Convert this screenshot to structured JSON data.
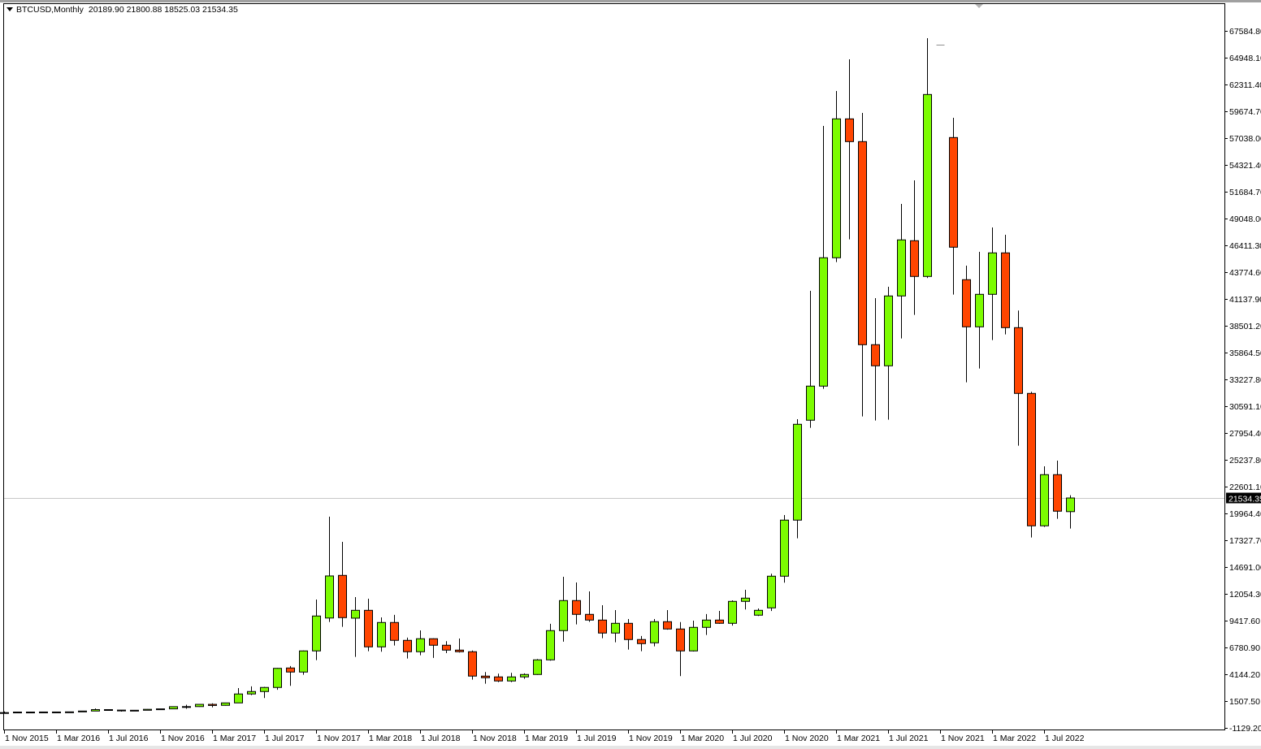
{
  "header": {
    "symbol_timeframe": "BTCUSD,Monthly",
    "ohlc": "20189.90 21800.88 18525.03 21534.35"
  },
  "colors": {
    "bull": "#7CFC00",
    "bear": "#FF4500",
    "outline": "#000000",
    "current_price_line": "#C8C8C8",
    "current_price_label_bg": "#000000"
  },
  "icons": {
    "symbol_menu": "triangle-down-icon",
    "chart_shift": "triangle-down-marker-icon"
  },
  "chart_data": {
    "type": "candlestick",
    "title": "",
    "current_price": 21534.35,
    "current_price_label": "21534.35",
    "ylim": [
      -1129.2,
      67584.8
    ],
    "y_tick_labels": [
      "67584.80",
      "64948.10",
      "62311.40",
      "59674.70",
      "57038.00",
      "54321.40",
      "51684.70",
      "49048.00",
      "46411.30",
      "43774.60",
      "41137.90",
      "38501.20",
      "35864.50",
      "33227.80",
      "30591.10",
      "27954.40",
      "25237.80",
      "22601.10",
      "19964.40",
      "17327.70",
      "14691.00",
      "12054.30",
      "9417.60",
      "6780.90",
      "4144.20",
      "1507.50",
      "-1129.20"
    ],
    "x_tick_labels": [
      "1 Nov 2015",
      "1 Mar 2016",
      "1 Jul 2016",
      "1 Nov 2016",
      "1 Mar 2017",
      "1 Jul 2017",
      "1 Nov 2017",
      "1 Mar 2018",
      "1 Jul 2018",
      "1 Nov 2018",
      "1 Mar 2019",
      "1 Jul 2019",
      "1 Nov 2019",
      "1 Mar 2020",
      "1 Jul 2020",
      "1 Nov 2020",
      "1 Mar 2021",
      "1 Jul 2021",
      "1 Nov 2021",
      "1 Mar 2022",
      "1 Jul 2022"
    ],
    "first_bar": "1 Nov 2015",
    "period": "Monthly",
    "ohlc": [
      [
        311,
        495,
        300,
        377
      ],
      [
        377,
        465,
        350,
        430
      ],
      [
        430,
        462,
        365,
        368
      ],
      [
        368,
        440,
        366,
        437
      ],
      [
        437,
        440,
        395,
        416
      ],
      [
        416,
        470,
        412,
        448
      ],
      [
        448,
        540,
        440,
        531
      ],
      [
        531,
        780,
        525,
        673
      ],
      [
        673,
        705,
        605,
        624
      ],
      [
        624,
        630,
        470,
        573
      ],
      [
        573,
        625,
        570,
        608
      ],
      [
        608,
        720,
        605,
        700
      ],
      [
        700,
        755,
        680,
        745
      ],
      [
        745,
        975,
        745,
        963
      ],
      [
        963,
        1150,
        750,
        970
      ],
      [
        970,
        1200,
        940,
        1190
      ],
      [
        1190,
        1290,
        890,
        1080
      ],
      [
        1093,
        1350,
        1060,
        1333
      ],
      [
        1333,
        2800,
        1320,
        2214
      ],
      [
        2214,
        2961,
        2100,
        2454
      ],
      [
        2454,
        2920,
        1814,
        2855
      ],
      [
        2855,
        4776,
        2620,
        4740
      ],
      [
        4776,
        4963,
        3015,
        4376
      ],
      [
        4376,
        6500,
        4109,
        6458
      ],
      [
        6458,
        11528,
        5550,
        9900
      ],
      [
        9700,
        19696,
        9313,
        13850
      ],
      [
        13904,
        17214,
        8833,
        9740
      ],
      [
        9686,
        11769,
        5870,
        10461
      ],
      [
        10461,
        11609,
        6431,
        6858
      ],
      [
        6858,
        9767,
        6377,
        9260
      ],
      [
        9260,
        10008,
        6992,
        7499
      ],
      [
        7499,
        7766,
        5711,
        6378
      ],
      [
        6378,
        8486,
        6031,
        7659
      ],
      [
        7659,
        7700,
        5764,
        7018
      ],
      [
        7018,
        7418,
        6240,
        6538
      ],
      [
        6538,
        7685,
        6300,
        6378
      ],
      [
        6378,
        6500,
        3628,
        3976
      ],
      [
        3976,
        4376,
        3228,
        3815
      ],
      [
        3895,
        4216,
        3388,
        3495
      ],
      [
        3495,
        4296,
        3390,
        3895
      ],
      [
        3895,
        4243,
        3708,
        4135
      ],
      [
        4135,
        5657,
        4100,
        5577
      ],
      [
        5577,
        9127,
        5500,
        8459
      ],
      [
        8459,
        13771,
        7365,
        11422
      ],
      [
        11422,
        13210,
        9073,
        10061
      ],
      [
        10061,
        12329,
        9320,
        9500
      ],
      [
        9500,
        10968,
        7712,
        8219
      ],
      [
        8219,
        10488,
        7312,
        9180
      ],
      [
        9180,
        9607,
        6591,
        7579
      ],
      [
        7579,
        7926,
        6431,
        7178
      ],
      [
        7258,
        9607,
        6911,
        9340
      ],
      [
        9340,
        10488,
        8550,
        8620
      ],
      [
        8620,
        9300,
        3975,
        6458
      ],
      [
        6458,
        9447,
        6400,
        8780
      ],
      [
        8780,
        10088,
        8032,
        9500
      ],
      [
        9500,
        10408,
        9130,
        9180
      ],
      [
        9180,
        11449,
        8950,
        11342
      ],
      [
        11342,
        12490,
        10541,
        11662
      ],
      [
        9981,
        10648,
        9900,
        10461
      ],
      [
        10701,
        14064,
        10390,
        13824
      ],
      [
        13824,
        19856,
        13183,
        19353
      ],
      [
        19353,
        29308,
        17565,
        28801
      ],
      [
        29201,
        41959,
        28454,
        32564
      ],
      [
        32564,
        58216,
        32297,
        45218
      ],
      [
        45218,
        61659,
        44791,
        58910
      ],
      [
        58910,
        64782,
        47033,
        56668
      ],
      [
        56668,
        59497,
        29575,
        36648
      ],
      [
        36648,
        41238,
        29175,
        34566
      ],
      [
        34566,
        42359,
        29255,
        41452
      ],
      [
        41452,
        50529,
        37262,
        46979
      ],
      [
        46899,
        52852,
        39584,
        43374
      ],
      [
        43374,
        66864,
        43214,
        61312
      ],
      [
        66220,
        66220,
        66220,
        66220
      ],
      [
        57068,
        59016,
        41587,
        46258
      ],
      [
        43055,
        44443,
        32937,
        38408
      ],
      [
        38408,
        45804,
        34298,
        41614
      ],
      [
        41614,
        48206,
        37101,
        45698
      ],
      [
        45698,
        47486,
        37661,
        38328
      ],
      [
        38328,
        40012,
        26692,
        31843
      ],
      [
        31843,
        32003,
        17643,
        18791
      ],
      [
        18791,
        24662,
        18684,
        23835
      ],
      [
        23835,
        25224,
        19485,
        20233
      ],
      [
        20189.9,
        21800.88,
        18525.03,
        21534.35
      ]
    ]
  }
}
